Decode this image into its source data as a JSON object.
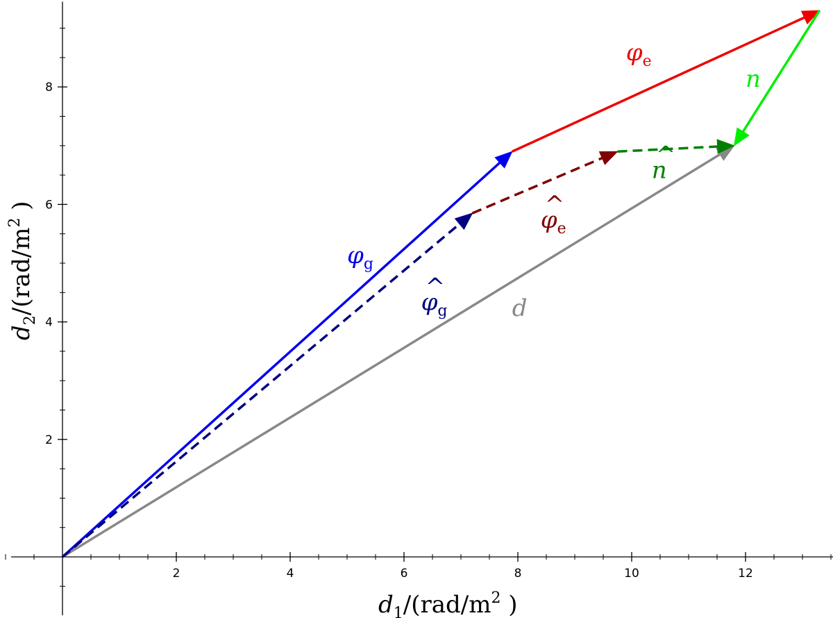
{
  "chart_data": {
    "type": "vector-diagram",
    "title": "",
    "xlabel": {
      "symbol": "d",
      "subscript": "1",
      "unit": "/(rad/m",
      "sup": "2",
      "close": " )"
    },
    "ylabel": {
      "symbol": "d",
      "subscript": "2",
      "unit": "/(rad/m",
      "sup": "2",
      "close": " )"
    },
    "xlim": [
      -1.0,
      13.8
    ],
    "ylim": [
      -0.9,
      9.45
    ],
    "xticks": [
      2,
      4,
      6,
      8,
      10,
      12
    ],
    "yticks": [
      2,
      4,
      6,
      8
    ],
    "vectors": [
      {
        "id": "phi_g",
        "from": [
          0,
          0
        ],
        "to": [
          7.9,
          6.9
        ],
        "color": "#0000ee",
        "dashed": false,
        "width": 3.5,
        "label": {
          "base": "φ",
          "sub": "g",
          "hat": false,
          "x": 5.0,
          "y": 5.0,
          "color": "#0000ee"
        }
      },
      {
        "id": "phi_e",
        "from": [
          7.9,
          6.9
        ],
        "to": [
          13.3,
          9.3
        ],
        "color": "#ee0000",
        "dashed": false,
        "width": 3.5,
        "label": {
          "base": "φ",
          "sub": "e",
          "hat": false,
          "x": 9.9,
          "y": 8.45,
          "color": "#ee0000"
        }
      },
      {
        "id": "n",
        "from": [
          13.3,
          9.3
        ],
        "to": [
          11.8,
          7.0
        ],
        "color": "#00ee00",
        "dashed": false,
        "width": 3.5,
        "label": {
          "base": "n",
          "sub": "",
          "hat": false,
          "x": 12.0,
          "y": 8.0,
          "color": "#00ee00"
        }
      },
      {
        "id": "d",
        "from": [
          0,
          0
        ],
        "to": [
          11.8,
          7.0
        ],
        "color": "#888888",
        "dashed": false,
        "width": 3.5,
        "label": {
          "base": "d",
          "sub": "",
          "hat": false,
          "x": 7.9,
          "y": 4.1,
          "color": "#888888"
        }
      },
      {
        "id": "phi_g_hat",
        "from": [
          0,
          0
        ],
        "to": [
          7.2,
          5.85
        ],
        "color": "#000080",
        "dashed": true,
        "width": 3.5,
        "label": {
          "base": "φ",
          "sub": "g",
          "hat": true,
          "x": 6.3,
          "y": 4.2,
          "color": "#000080"
        }
      },
      {
        "id": "phi_e_hat",
        "from": [
          7.2,
          5.85
        ],
        "to": [
          9.75,
          6.9
        ],
        "color": "#800000",
        "dashed": true,
        "width": 3.5,
        "label": {
          "base": "φ",
          "sub": "e",
          "hat": true,
          "x": 8.4,
          "y": 5.6,
          "color": "#800000"
        }
      },
      {
        "id": "n_hat",
        "from": [
          9.75,
          6.9
        ],
        "to": [
          11.8,
          7.0
        ],
        "color": "#008000",
        "dashed": true,
        "width": 3.5,
        "label": {
          "base": "n",
          "sub": "",
          "hat": true,
          "x": 10.35,
          "y": 6.45,
          "color": "#008000"
        }
      }
    ]
  }
}
